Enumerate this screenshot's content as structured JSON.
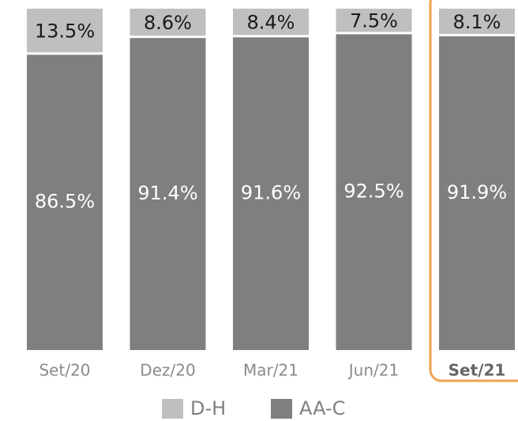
{
  "chart_data": {
    "type": "stacked_bar",
    "categories": [
      "Set/20",
      "Dez/20",
      "Mar/21",
      "Jun/21",
      "Set/21"
    ],
    "series": [
      {
        "name": "D-H",
        "color": "#bfbfbf",
        "values": [
          13.5,
          8.6,
          8.4,
          7.5,
          8.1
        ],
        "value_labels": [
          "13.5%",
          "8.6%",
          "8.4%",
          "7.5%",
          "8.1%"
        ]
      },
      {
        "name": "AA-C",
        "color": "#7f7f7f",
        "values": [
          86.5,
          91.4,
          91.6,
          92.5,
          91.9
        ],
        "value_labels": [
          "86.5%",
          "91.4%",
          "91.6%",
          "92.5%",
          "91.9%"
        ]
      }
    ],
    "ylim": [
      0,
      100
    ]
  }
}
